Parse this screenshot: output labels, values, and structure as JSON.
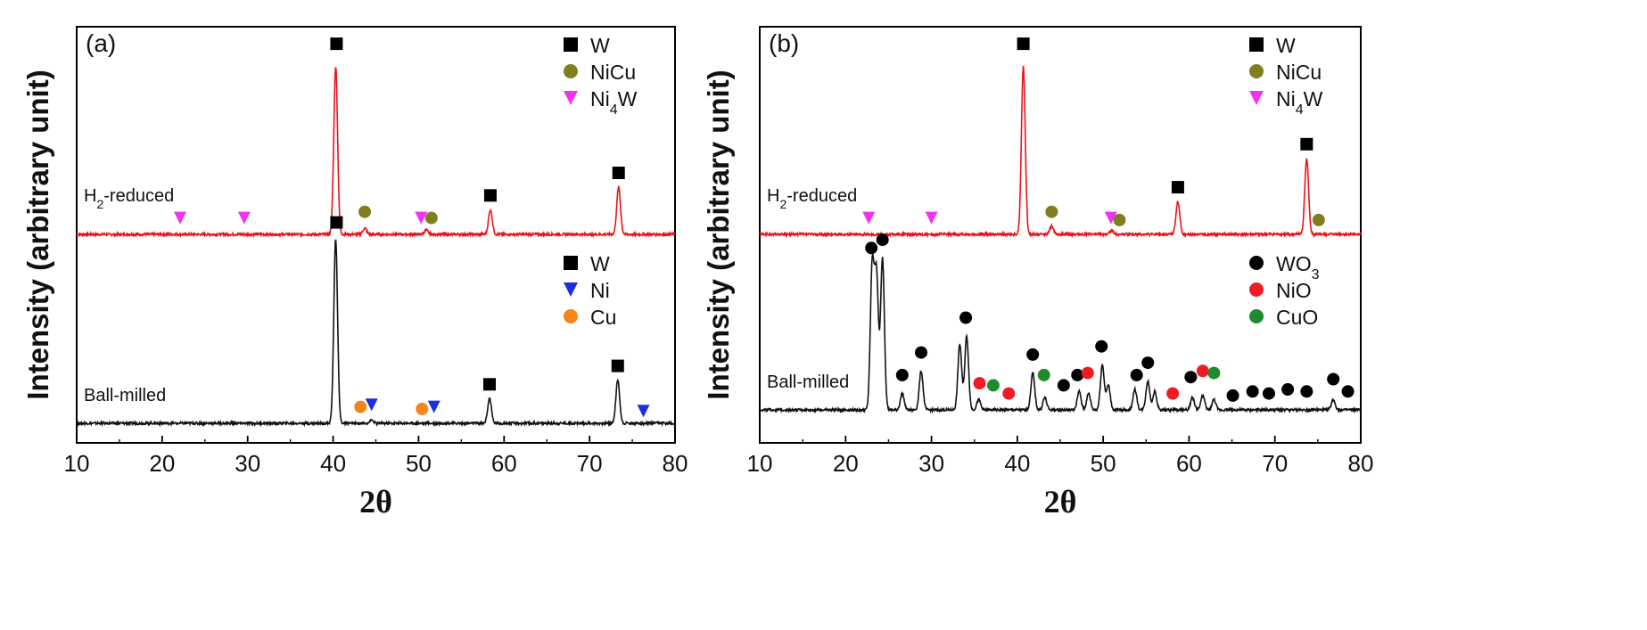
{
  "figure": {
    "ylabel": "Intensity (arbitrary unit)"
  },
  "chart_data": [
    {
      "type": "line",
      "panel_label": "(a)",
      "xlabel": "2θ",
      "ylabel": "Intensity (arbitrary unit)",
      "xlim": [
        10,
        80
      ],
      "xticks": [
        10,
        20,
        30,
        40,
        50,
        60,
        70,
        80
      ],
      "grid": false,
      "y_ticks_shown": false,
      "series": [
        {
          "name": "H2-reduced",
          "color": "#e8141b",
          "label_parts": [
            "H",
            "2",
            "-reduced"
          ],
          "baseline": 1.0,
          "peaks": [
            {
              "x": 40.3,
              "y": 0.82
            },
            {
              "x": 43.7,
              "y": 0.03
            },
            {
              "x": 50.9,
              "y": 0.02
            },
            {
              "x": 58.4,
              "y": 0.12
            },
            {
              "x": 73.4,
              "y": 0.23
            }
          ]
        },
        {
          "name": "Ball-milled",
          "color": "#111111",
          "label_parts": [
            "Ball-milled"
          ],
          "baseline": 0.0,
          "peaks": [
            {
              "x": 40.3,
              "y": 0.9
            },
            {
              "x": 44.5,
              "y": 0.015
            },
            {
              "x": 58.3,
              "y": 0.12
            },
            {
              "x": 73.3,
              "y": 0.21
            }
          ]
        }
      ],
      "legends": [
        {
          "position": "top-right",
          "entries": [
            {
              "marker": "square",
              "color": "#000000",
              "label_parts": [
                "W"
              ]
            },
            {
              "marker": "circle",
              "color": "#7f7f1f",
              "label_parts": [
                "NiCu"
              ]
            },
            {
              "marker": "triangle-down",
              "color": "#f033f0",
              "label_parts": [
                "Ni",
                "4",
                "W"
              ]
            }
          ]
        },
        {
          "position": "middle-right",
          "entries": [
            {
              "marker": "square",
              "color": "#000000",
              "label_parts": [
                "W"
              ]
            },
            {
              "marker": "triangle-down",
              "color": "#1a2fe0",
              "label_parts": [
                "Ni"
              ]
            },
            {
              "marker": "circle",
              "color": "#f7861a",
              "label_parts": [
                "Cu"
              ]
            }
          ]
        }
      ],
      "peak_markers": [
        {
          "x": 22.1,
          "y": 1.08,
          "marker": "triangle-down",
          "color": "#f033f0"
        },
        {
          "x": 29.6,
          "y": 1.08,
          "marker": "triangle-down",
          "color": "#f033f0"
        },
        {
          "x": 40.4,
          "y": 1.93,
          "marker": "square",
          "color": "#000000"
        },
        {
          "x": 43.7,
          "y": 1.11,
          "marker": "circle",
          "color": "#7f7f1f"
        },
        {
          "x": 50.3,
          "y": 1.08,
          "marker": "triangle-down",
          "color": "#f033f0"
        },
        {
          "x": 51.5,
          "y": 1.08,
          "marker": "circle",
          "color": "#7f7f1f"
        },
        {
          "x": 58.4,
          "y": 1.19,
          "marker": "square",
          "color": "#000000"
        },
        {
          "x": 73.4,
          "y": 1.3,
          "marker": "square",
          "color": "#000000"
        },
        {
          "x": 40.4,
          "y": 0.98,
          "marker": "square",
          "color": "#000000"
        },
        {
          "x": 43.2,
          "y": 0.08,
          "marker": "circle",
          "color": "#f7861a"
        },
        {
          "x": 44.5,
          "y": 0.09,
          "marker": "triangle-down",
          "color": "#1a2fe0"
        },
        {
          "x": 50.4,
          "y": 0.07,
          "marker": "circle",
          "color": "#f7861a"
        },
        {
          "x": 51.8,
          "y": 0.08,
          "marker": "triangle-down",
          "color": "#1a2fe0"
        },
        {
          "x": 58.3,
          "y": 0.19,
          "marker": "square",
          "color": "#000000"
        },
        {
          "x": 73.3,
          "y": 0.28,
          "marker": "square",
          "color": "#000000"
        },
        {
          "x": 76.3,
          "y": 0.06,
          "marker": "triangle-down",
          "color": "#1a2fe0"
        }
      ]
    },
    {
      "type": "line",
      "panel_label": "(b)",
      "xlabel": "2θ",
      "ylabel": "Intensity (arbitrary unit)",
      "xlim": [
        10,
        80
      ],
      "xticks": [
        10,
        20,
        30,
        40,
        50,
        60,
        70,
        80
      ],
      "grid": false,
      "y_ticks_shown": false,
      "series": [
        {
          "name": "H2-reduced",
          "color": "#e8141b",
          "label_parts": [
            "H",
            "2",
            "-reduced"
          ],
          "baseline": 1.0,
          "peaks": [
            {
              "x": 40.7,
              "y": 0.82
            },
            {
              "x": 44.0,
              "y": 0.04
            },
            {
              "x": 51.0,
              "y": 0.02
            },
            {
              "x": 58.7,
              "y": 0.16
            },
            {
              "x": 73.7,
              "y": 0.37
            }
          ]
        },
        {
          "name": "Ball-milled",
          "color": "#111111",
          "label_parts": [
            "Ball-milled"
          ],
          "baseline": 0.02,
          "peaks": [
            {
              "x": 23.1,
              "y": 0.7
            },
            {
              "x": 23.6,
              "y": 0.65
            },
            {
              "x": 24.3,
              "y": 0.74
            },
            {
              "x": 26.6,
              "y": 0.08
            },
            {
              "x": 28.8,
              "y": 0.19
            },
            {
              "x": 33.3,
              "y": 0.32
            },
            {
              "x": 34.1,
              "y": 0.36
            },
            {
              "x": 35.5,
              "y": 0.05
            },
            {
              "x": 41.8,
              "y": 0.18
            },
            {
              "x": 43.2,
              "y": 0.06
            },
            {
              "x": 47.2,
              "y": 0.09
            },
            {
              "x": 48.3,
              "y": 0.08
            },
            {
              "x": 49.9,
              "y": 0.22
            },
            {
              "x": 50.6,
              "y": 0.12
            },
            {
              "x": 53.7,
              "y": 0.1
            },
            {
              "x": 55.2,
              "y": 0.14
            },
            {
              "x": 56.0,
              "y": 0.09
            },
            {
              "x": 60.4,
              "y": 0.06
            },
            {
              "x": 61.6,
              "y": 0.07
            },
            {
              "x": 62.9,
              "y": 0.05
            },
            {
              "x": 76.8,
              "y": 0.05
            }
          ]
        }
      ],
      "legends": [
        {
          "position": "top-right",
          "entries": [
            {
              "marker": "square",
              "color": "#000000",
              "label_parts": [
                "W"
              ]
            },
            {
              "marker": "circle",
              "color": "#7f7f1f",
              "label_parts": [
                "NiCu"
              ]
            },
            {
              "marker": "triangle-down",
              "color": "#f033f0",
              "label_parts": [
                "Ni",
                "4",
                "W"
              ]
            }
          ]
        },
        {
          "position": "middle-right",
          "entries": [
            {
              "marker": "circle",
              "color": "#000000",
              "label_parts": [
                "WO",
                "3"
              ]
            },
            {
              "marker": "circle",
              "color": "#ee1c25",
              "label_parts": [
                "NiO"
              ]
            },
            {
              "marker": "circle",
              "color": "#1f8a2e",
              "label_parts": [
                "CuO"
              ]
            }
          ]
        }
      ],
      "peak_markers": [
        {
          "x": 22.7,
          "y": 1.08,
          "marker": "triangle-down",
          "color": "#f033f0"
        },
        {
          "x": 30.0,
          "y": 1.08,
          "marker": "triangle-down",
          "color": "#f033f0"
        },
        {
          "x": 40.7,
          "y": 1.93,
          "marker": "square",
          "color": "#000000"
        },
        {
          "x": 44.0,
          "y": 1.11,
          "marker": "circle",
          "color": "#7f7f1f"
        },
        {
          "x": 50.9,
          "y": 1.08,
          "marker": "triangle-down",
          "color": "#f033f0"
        },
        {
          "x": 51.9,
          "y": 1.07,
          "marker": "circle",
          "color": "#7f7f1f"
        },
        {
          "x": 58.7,
          "y": 1.23,
          "marker": "square",
          "color": "#000000"
        },
        {
          "x": 73.7,
          "y": 1.44,
          "marker": "square",
          "color": "#000000"
        },
        {
          "x": 75.1,
          "y": 1.07,
          "marker": "circle",
          "color": "#7f7f1f"
        },
        {
          "x": 23.0,
          "y": 0.79,
          "marker": "circle",
          "color": "#000000"
        },
        {
          "x": 24.3,
          "y": 0.83,
          "marker": "circle",
          "color": "#000000"
        },
        {
          "x": 26.6,
          "y": 0.17,
          "marker": "circle",
          "color": "#000000"
        },
        {
          "x": 28.8,
          "y": 0.28,
          "marker": "circle",
          "color": "#000000"
        },
        {
          "x": 34.0,
          "y": 0.45,
          "marker": "circle",
          "color": "#000000"
        },
        {
          "x": 35.6,
          "y": 0.13,
          "marker": "circle",
          "color": "#ee1c25"
        },
        {
          "x": 37.2,
          "y": 0.12,
          "marker": "circle",
          "color": "#1f8a2e"
        },
        {
          "x": 39.0,
          "y": 0.08,
          "marker": "circle",
          "color": "#ee1c25"
        },
        {
          "x": 41.8,
          "y": 0.27,
          "marker": "circle",
          "color": "#000000"
        },
        {
          "x": 43.1,
          "y": 0.17,
          "marker": "circle",
          "color": "#1f8a2e"
        },
        {
          "x": 45.4,
          "y": 0.12,
          "marker": "circle",
          "color": "#000000"
        },
        {
          "x": 47.0,
          "y": 0.17,
          "marker": "circle",
          "color": "#000000"
        },
        {
          "x": 48.2,
          "y": 0.18,
          "marker": "circle",
          "color": "#ee1c25"
        },
        {
          "x": 49.8,
          "y": 0.31,
          "marker": "circle",
          "color": "#000000"
        },
        {
          "x": 53.9,
          "y": 0.17,
          "marker": "circle",
          "color": "#000000"
        },
        {
          "x": 55.2,
          "y": 0.23,
          "marker": "circle",
          "color": "#000000"
        },
        {
          "x": 58.1,
          "y": 0.08,
          "marker": "circle",
          "color": "#ee1c25"
        },
        {
          "x": 60.2,
          "y": 0.16,
          "marker": "circle",
          "color": "#000000"
        },
        {
          "x": 61.6,
          "y": 0.19,
          "marker": "circle",
          "color": "#ee1c25"
        },
        {
          "x": 62.9,
          "y": 0.18,
          "marker": "circle",
          "color": "#1f8a2e"
        },
        {
          "x": 65.1,
          "y": 0.07,
          "marker": "circle",
          "color": "#000000"
        },
        {
          "x": 67.4,
          "y": 0.09,
          "marker": "circle",
          "color": "#000000"
        },
        {
          "x": 69.3,
          "y": 0.08,
          "marker": "circle",
          "color": "#000000"
        },
        {
          "x": 71.5,
          "y": 0.1,
          "marker": "circle",
          "color": "#000000"
        },
        {
          "x": 73.7,
          "y": 0.09,
          "marker": "circle",
          "color": "#000000"
        },
        {
          "x": 76.8,
          "y": 0.15,
          "marker": "circle",
          "color": "#000000"
        },
        {
          "x": 78.5,
          "y": 0.09,
          "marker": "circle",
          "color": "#000000"
        }
      ]
    }
  ]
}
